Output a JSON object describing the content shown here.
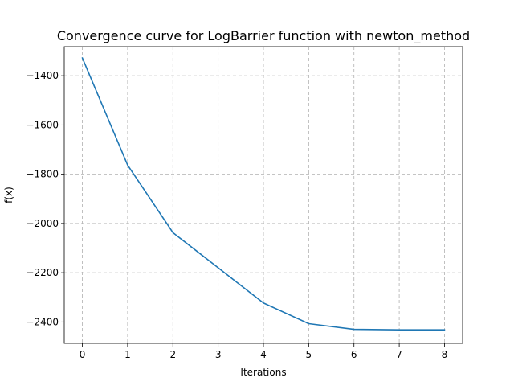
{
  "chart_data": {
    "type": "line",
    "title": "Convergence curve for LogBarrier function with newton_method",
    "xlabel": "Iterations",
    "ylabel": "f(x)",
    "xlim": [
      -0.4,
      8.4
    ],
    "ylim": [
      -2487,
      -1282
    ],
    "x_ticks": [
      0,
      1,
      2,
      3,
      4,
      5,
      6,
      7,
      8
    ],
    "y_ticks": [
      -2400,
      -2200,
      -2000,
      -1800,
      -1600,
      -1400
    ],
    "x_tick_labels": [
      "0",
      "1",
      "2",
      "3",
      "4",
      "5",
      "6",
      "7",
      "8"
    ],
    "y_tick_labels": [
      "−2400",
      "−2200",
      "−2000",
      "−1800",
      "−1600",
      "−1400"
    ],
    "grid": true,
    "series": [
      {
        "color": "#1f77b4",
        "x": [
          0,
          1,
          2,
          3,
          4,
          5,
          6,
          7,
          8
        ],
        "y": [
          -1328,
          -1763,
          -2037,
          -2180,
          -2323,
          -2407,
          -2430,
          -2432,
          -2432
        ]
      }
    ]
  }
}
